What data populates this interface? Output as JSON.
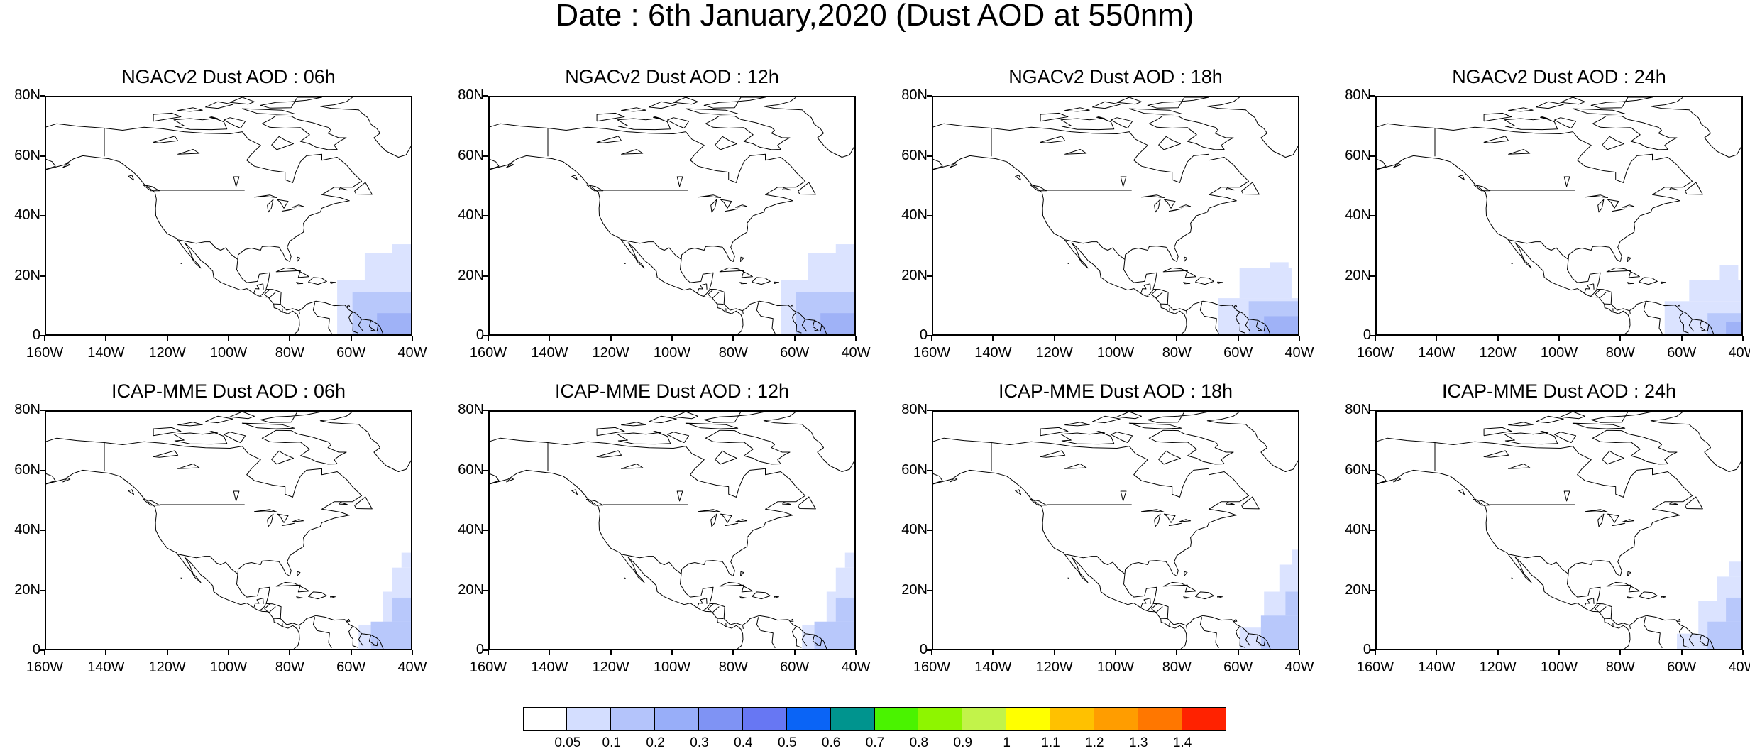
{
  "figure": {
    "title": "Date : 6th January,2020 (Dust AOD at 550nm)"
  },
  "panels": [
    {
      "title": "NGACv2 Dust AOD : 06h",
      "model": "NGAC",
      "hour": "06h"
    },
    {
      "title": "NGACv2 Dust AOD : 12h",
      "model": "NGAC",
      "hour": "12h"
    },
    {
      "title": "NGACv2 Dust AOD : 18h",
      "model": "NGAC",
      "hour": "18h"
    },
    {
      "title": "NGACv2 Dust AOD : 24h",
      "model": "NGAC",
      "hour": "24h"
    },
    {
      "title": "ICAP-MME Dust AOD : 06h",
      "model": "ICAP",
      "hour": "06h"
    },
    {
      "title": "ICAP-MME Dust AOD : 12h",
      "model": "ICAP",
      "hour": "12h"
    },
    {
      "title": "ICAP-MME Dust AOD : 18h",
      "model": "ICAP",
      "hour": "18h"
    },
    {
      "title": "ICAP-MME Dust AOD : 24h",
      "model": "ICAP",
      "hour": "24h"
    }
  ],
  "axes": {
    "lat_labels": [
      "80N",
      "60N",
      "40N",
      "20N",
      "0"
    ],
    "lon_labels": [
      "160W",
      "140W",
      "120W",
      "100W",
      "80W",
      "60W",
      "40W"
    ],
    "lat_range": [
      0,
      80
    ],
    "lon_range": [
      -160,
      -40
    ]
  },
  "colorbar": {
    "labels": [
      "0.05",
      "0.1",
      "0.2",
      "0.3",
      "0.4",
      "0.5",
      "0.6",
      "0.7",
      "0.8",
      "0.9",
      "1",
      "1.1",
      "1.2",
      "1.3",
      "1.4"
    ],
    "colors": [
      "#ffffff",
      "#d4deff",
      "#b4c4fb",
      "#98aef9",
      "#7f93f4",
      "#6777f3",
      "#0a64f6",
      "#00948e",
      "#4af300",
      "#8ef500",
      "#c2f34a",
      "#ffff00",
      "#ffc100",
      "#ff9d00",
      "#ff7700",
      "#ff2200"
    ]
  },
  "colors": {
    "coastline": "#000000",
    "aod_low": "#dbe3ff",
    "aod_mid": "#b8c8fb",
    "aod_high": "#9fb2f7"
  }
}
